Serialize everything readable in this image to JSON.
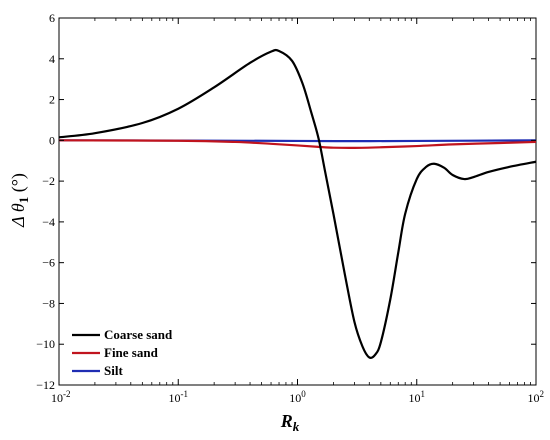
{
  "chart_data": {
    "type": "line",
    "title": "",
    "xlabel": "R",
    "xlabel_sub": "k",
    "ylabel": "Δ θ",
    "ylabel_sub": "1",
    "ylabel_unit": " (°)",
    "x_scale": "log",
    "xlim": [
      0.01,
      100
    ],
    "ylim": [
      -12,
      6
    ],
    "x_ticks": [
      {
        "base": "10",
        "exp": "-2",
        "value": 0.01
      },
      {
        "base": "10",
        "exp": "-1",
        "value": 0.1
      },
      {
        "base": "10",
        "exp": "0",
        "value": 1
      },
      {
        "base": "10",
        "exp": "1",
        "value": 10
      },
      {
        "base": "10",
        "exp": "2",
        "value": 100
      }
    ],
    "y_ticks": [
      {
        "label": "6",
        "value": 6
      },
      {
        "label": "4",
        "value": 4
      },
      {
        "label": "2",
        "value": 2
      },
      {
        "label": "0",
        "value": 0
      },
      {
        "label": "−2",
        "value": -2
      },
      {
        "label": "−4",
        "value": -4
      },
      {
        "label": "−6",
        "value": -6
      },
      {
        "label": "−8",
        "value": -8
      },
      {
        "label": "−10",
        "value": -10
      },
      {
        "label": "−12",
        "value": -12
      }
    ],
    "grid": false,
    "legend_position": "bottom-left",
    "series": [
      {
        "name": "Coarse sand",
        "color": "#000000",
        "x": [
          0.01,
          0.02,
          0.05,
          0.1,
          0.2,
          0.4,
          0.6,
          0.7,
          0.9,
          1.1,
          1.3,
          1.5,
          1.7,
          2.0,
          2.5,
          3.0,
          3.5,
          4.0,
          4.5,
          5.0,
          6.0,
          7.0,
          8.0,
          10,
          12,
          14,
          17,
          20,
          25,
          30,
          40,
          60,
          100
        ],
        "y": [
          0.15,
          0.35,
          0.85,
          1.55,
          2.6,
          3.8,
          4.35,
          4.38,
          3.9,
          2.8,
          1.4,
          0.1,
          -1.5,
          -3.6,
          -6.6,
          -8.9,
          -10.1,
          -10.65,
          -10.5,
          -9.9,
          -7.8,
          -5.5,
          -3.6,
          -1.9,
          -1.3,
          -1.15,
          -1.35,
          -1.7,
          -1.9,
          -1.8,
          -1.55,
          -1.3,
          -1.05
        ]
      },
      {
        "name": "Fine sand",
        "color": "#c0141e",
        "x": [
          0.01,
          0.1,
          0.3,
          0.6,
          1.0,
          1.5,
          2.0,
          3.0,
          5.0,
          10,
          20,
          50,
          100
        ],
        "y": [
          0.0,
          -0.02,
          -0.08,
          -0.17,
          -0.25,
          -0.32,
          -0.36,
          -0.37,
          -0.34,
          -0.28,
          -0.2,
          -0.13,
          -0.08
        ]
      },
      {
        "name": "Silt",
        "color": "#1f2db3",
        "x": [
          0.01,
          0.1,
          1.0,
          3.0,
          10,
          100
        ],
        "y": [
          0.0,
          -0.01,
          -0.03,
          -0.04,
          -0.03,
          0.0
        ]
      }
    ]
  }
}
